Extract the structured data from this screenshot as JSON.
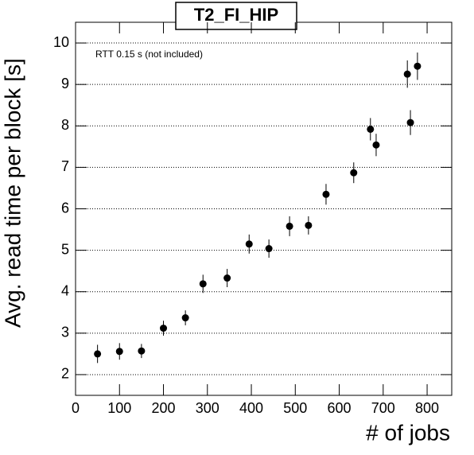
{
  "chart_data": {
    "type": "scatter",
    "title": "T2_FI_HIP",
    "x_label": "# of jobs",
    "y_label": "Avg. read time per block [s]",
    "annotation": "RTT 0.15 s (not included)",
    "x": [
      50,
      100,
      150,
      200,
      250,
      290,
      345,
      395,
      440,
      487,
      530,
      570,
      633,
      671,
      684,
      755,
      762,
      778
    ],
    "series": [
      {
        "color": "#000000",
        "values": [
          2.5,
          2.56,
          2.57,
          3.12,
          3.37,
          4.19,
          4.33,
          5.15,
          5.04,
          5.58,
          5.6,
          6.35,
          6.87,
          7.92,
          7.54,
          9.25,
          8.08,
          9.44
        ],
        "errors": [
          0.22,
          0.2,
          0.17,
          0.18,
          0.18,
          0.22,
          0.22,
          0.23,
          0.22,
          0.24,
          0.22,
          0.25,
          0.25,
          0.27,
          0.27,
          0.33,
          0.3,
          0.33
        ]
      }
    ],
    "xlim": [
      0,
      856
    ],
    "xticks": [
      0,
      100,
      200,
      300,
      400,
      500,
      600,
      700,
      800
    ],
    "ylim": [
      1.5,
      10.5
    ],
    "yticks": [
      2,
      3,
      4,
      5,
      6,
      7,
      8,
      9,
      10
    ],
    "grid": true
  }
}
